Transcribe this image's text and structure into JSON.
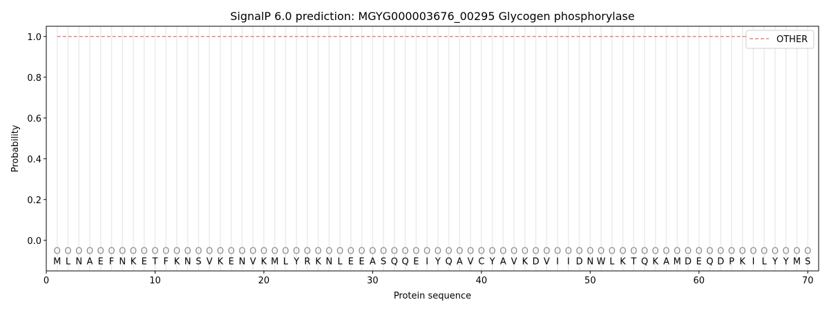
{
  "chart_data": {
    "type": "line",
    "title": "SignalP 6.0 prediction: MGYG000003676_00295 Glycogen phosphorylase",
    "xlabel": "Protein sequence",
    "ylabel": "Probability",
    "xlim": [
      0,
      71
    ],
    "ylim": [
      -0.15,
      1.05
    ],
    "xticks": [
      0,
      10,
      20,
      30,
      40,
      50,
      60,
      70
    ],
    "yticks": [
      0.0,
      0.2,
      0.4,
      0.6,
      0.8,
      1.0
    ],
    "ytick_labels": [
      "0.0",
      "0.2",
      "0.4",
      "0.6",
      "0.8",
      "1.0"
    ],
    "grid": "vertical per residue",
    "legend_position": "top-right",
    "sequence": [
      "M",
      "L",
      "N",
      "A",
      "E",
      "F",
      "N",
      "K",
      "E",
      "T",
      "F",
      "K",
      "N",
      "S",
      "V",
      "K",
      "E",
      "N",
      "V",
      "K",
      "M",
      "L",
      "Y",
      "R",
      "K",
      "N",
      "L",
      "E",
      "E",
      "A",
      "S",
      "Q",
      "Q",
      "E",
      "I",
      "Y",
      "Q",
      "A",
      "V",
      "C",
      "Y",
      "A",
      "V",
      "K",
      "D",
      "V",
      "I",
      "I",
      "D",
      "N",
      "W",
      "L",
      "K",
      "T",
      "Q",
      "K",
      "A",
      "M",
      "D",
      "E",
      "Q",
      "D",
      "P",
      "K",
      "I",
      "L",
      "Y",
      "Y",
      "M",
      "S"
    ],
    "predicted_labels": "OOOOOOOOOOOOOOOOOOOOOOOOOOOOOOOOOOOOOOOOOOOOOOOOOOOOOOOOOOOOOOOOOOOOOO",
    "series": [
      {
        "name": "OTHER",
        "color": "#f08080",
        "style": "dashed",
        "x_range": [
          1,
          70
        ],
        "value": 1.0
      }
    ]
  }
}
